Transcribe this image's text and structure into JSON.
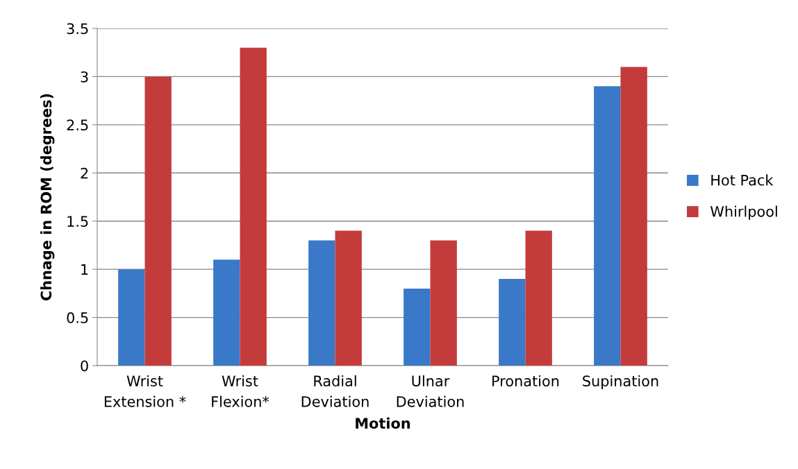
{
  "chart_data": {
    "type": "bar",
    "xlabel": "Motion",
    "ylabel": "Chnage in ROM (degrees)",
    "categories": [
      "Wrist\nExtension *",
      "Wrist\nFlexion*",
      "Radial\nDeviation",
      "Ulnar\nDeviation",
      "Pronation",
      "Supination"
    ],
    "series": [
      {
        "name": "Hot Pack",
        "color": "#3a78c8",
        "values": [
          1,
          1.1,
          1.3,
          0.8,
          0.9,
          2.9
        ]
      },
      {
        "name": "Whirlpool",
        "color": "#c43b3b",
        "values": [
          3,
          3.3,
          1.4,
          1.3,
          1.4,
          3.1
        ]
      }
    ],
    "ylim": [
      0,
      3.5
    ],
    "yticks": [
      0,
      0.5,
      1,
      1.5,
      2,
      2.5,
      3,
      3.5
    ],
    "grid": "y",
    "legend": "right"
  }
}
